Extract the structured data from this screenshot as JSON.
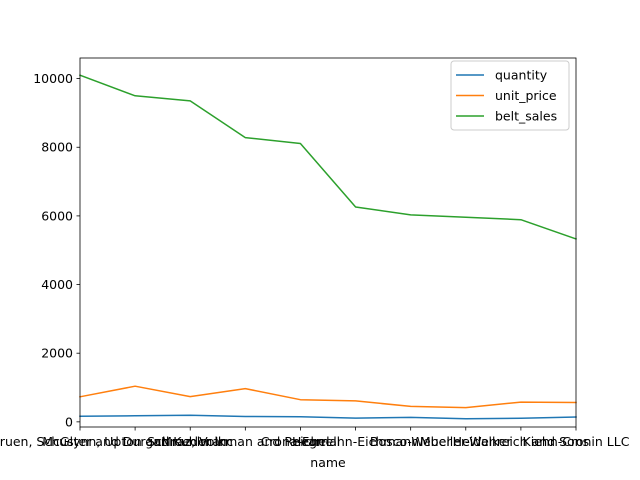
{
  "chart_data": {
    "type": "line",
    "title": "",
    "xlabel": "name",
    "ylabel": "",
    "categories": [
      "Bruen, Schuster and Durgan",
      "McGlynn, Upton and Kuhlman",
      "Schroeder Inc",
      "Mraz, Volkman and Reichel",
      "Crona-Farrell",
      "Hegmann-Eichmann",
      "Bosco-Weber",
      "Mueller-Walker",
      "Heidenreich and Sons",
      "Kiehn-Cronin LLC"
    ],
    "series": [
      {
        "name": "quantity",
        "color": "#1f77b4",
        "values": [
          165,
          175,
          190,
          155,
          150,
          110,
          130,
          90,
          105,
          140
        ]
      },
      {
        "name": "unit_price",
        "color": "#ff7f0e",
        "values": [
          730,
          1040,
          735,
          970,
          645,
          610,
          450,
          415,
          575,
          565
        ]
      },
      {
        "name": "belt_sales",
        "color": "#2ca02c",
        "values": [
          10100,
          9500,
          9350,
          8280,
          8110,
          6260,
          6030,
          5960,
          5890,
          5330
        ]
      }
    ],
    "ylim": [
      -150,
      10600
    ],
    "yticks": [
      0,
      2000,
      4000,
      6000,
      8000,
      10000
    ],
    "grid": false,
    "legend_position": "upper right"
  }
}
